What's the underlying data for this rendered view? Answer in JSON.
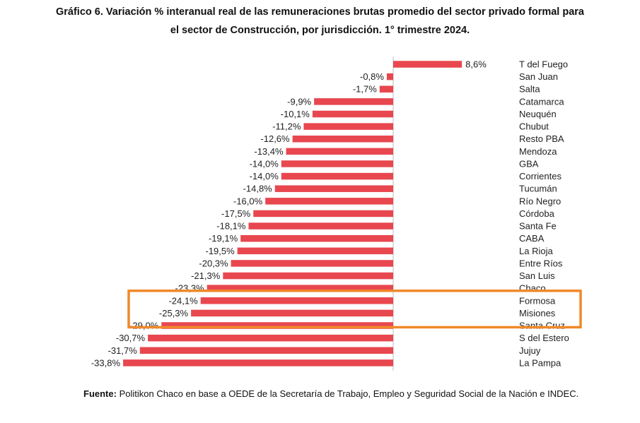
{
  "title_line1": "Gráfico 6. Variación % interanual real de las remuneraciones brutas promedio del sector privado formal para",
  "title_line2": "el sector de Construcción, por jurisdicción. 1° trimestre 2024.",
  "source_label": "Fuente:",
  "source_text": " Politikon Chaco en base a OEDE de la Secretaría de Trabajo, Empleo y Seguridad Social de la Nación e INDEC.",
  "colors": {
    "bar": "#e8474f",
    "highlight": "#f0892a",
    "axis": "#bbbbbb"
  },
  "highlighted_categories": [
    "Formosa",
    "Misiones"
  ],
  "chart_data": {
    "type": "bar",
    "orientation": "horizontal",
    "title": "Variación % interanual real de las remuneraciones brutas promedio del sector privado formal - Construcción, 1° trimestre 2024",
    "xlabel": "",
    "ylabel": "",
    "xlim": [
      -33.8,
      8.6
    ],
    "categories": [
      "T del Fuego",
      "San Juan",
      "Salta",
      "Catamarca",
      "Neuquén",
      "Chubut",
      "Resto PBA",
      "Mendoza",
      "GBA",
      "Corrientes",
      "Tucumán",
      "Río Negro",
      "Córdoba",
      "Santa Fe",
      "CABA",
      "La Rioja",
      "Entre Ríos",
      "San Luis",
      "Chaco",
      "Formosa",
      "Misiones",
      "Santa Cruz",
      "S del Estero",
      "Jujuy",
      "La Pampa"
    ],
    "values": [
      8.6,
      -0.8,
      -1.7,
      -9.9,
      -10.1,
      -11.2,
      -12.6,
      -13.4,
      -14.0,
      -14.0,
      -14.8,
      -16.0,
      -17.5,
      -18.1,
      -19.1,
      -19.5,
      -20.3,
      -21.3,
      -23.3,
      -24.1,
      -25.3,
      -29.0,
      -30.7,
      -31.7,
      -33.8
    ],
    "labels": [
      "8,6%",
      "-0,8%",
      "-1,7%",
      "-9,9%",
      "-10,1%",
      "-11,2%",
      "-12,6%",
      "-13,4%",
      "-14,0%",
      "-14,0%",
      "-14,8%",
      "-16,0%",
      "-17,5%",
      "-18,1%",
      "-19,1%",
      "-19,5%",
      "-20,3%",
      "-21,3%",
      "-23,3%",
      "-24,1%",
      "-25,3%",
      "-29,0%",
      "-30,7%",
      "-31,7%",
      "-33,8%"
    ]
  }
}
